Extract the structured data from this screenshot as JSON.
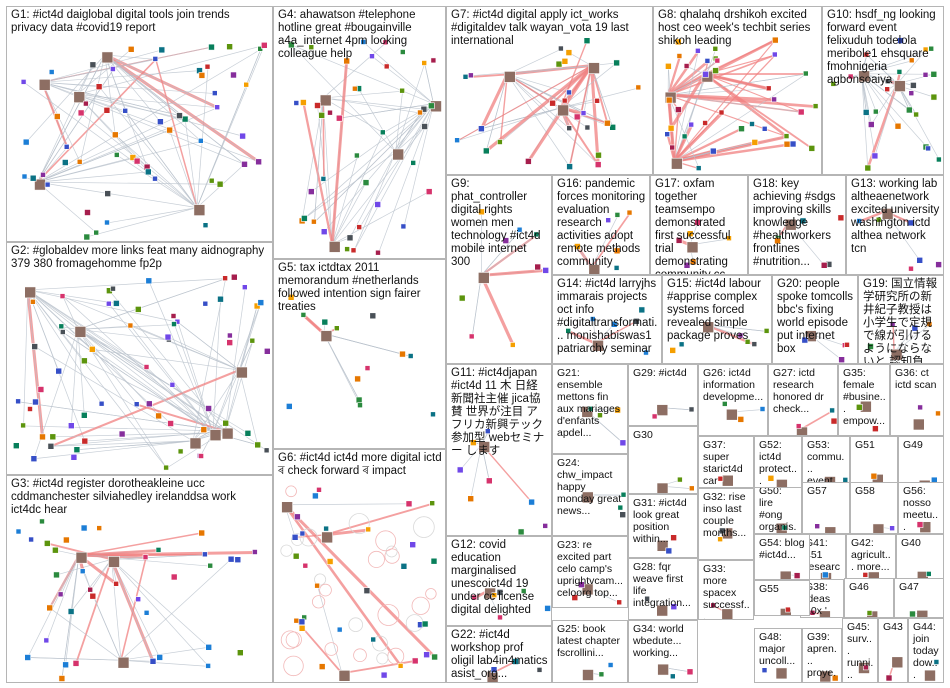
{
  "groups": [
    {
      "id": "G1",
      "label": "G1: #ict4d daiglobal digital tools join trends privacy data #covid19 report"
    },
    {
      "id": "G2",
      "label": "G2: #globaldev more links feat many aidnography 379 380 fromagehomme fp2p"
    },
    {
      "id": "G3",
      "label": "G3: #ict4d register dorotheakleine ucc cddmanchester silviahedley irelanddsa work ict4dc hear"
    },
    {
      "id": "G4",
      "label": "G4: ahawatson #telephone hotline great #bougainville a4a_internet 4pm looking colleague help"
    },
    {
      "id": "G5",
      "label": "G5: tax ictdtax 2011 memorandum #netherlands followed intention sign fairer treaties"
    },
    {
      "id": "G6",
      "label": "G6: #ict4d ict4d more digital ictd ৰ check forward ৰ impact"
    },
    {
      "id": "G7",
      "label": "G7: #ict4d digital apply ict_works #digitaldev talk wayan_vota 19 last international"
    },
    {
      "id": "G8",
      "label": "G8: qhalahq drshikoh excited host ceo week's techbit series shikoh leading"
    },
    {
      "id": "G9",
      "label": "G9: phat_controller digital rights women men technology #ict4d mobile internet 300"
    },
    {
      "id": "G10",
      "label": "G10: hsdf_ng looking forward event felixuduh todelola meribole1 ehsquare fmohnigeria agbonsoaiya"
    },
    {
      "id": "G11",
      "label": "G11: #ict4djapan #ict4d 11 木 日経新聞社主催 jica協賛 世界が注目 アフリカ新興テック 参加型 webセミナー します"
    },
    {
      "id": "G12",
      "label": "G12: covid education marginalised unescoict4d 19 under cc license digital delighted"
    },
    {
      "id": "G13",
      "label": "G13: working lab altheaenetwork excited university washington ictd althea network tcn"
    },
    {
      "id": "G14",
      "label": "G14: #ict4d larryjhs immarais projects oct info #digitaltransformati... monishabiswas1 patriarchy seminar"
    },
    {
      "id": "G15",
      "label": "G15: #ict4d labour #apprise complex systems forced revealed simple package proves"
    },
    {
      "id": "G16",
      "label": "G16: pandemic forces monitoring evaluation research activities adopt remote methods community"
    },
    {
      "id": "G17",
      "label": "G17: oxfam together teamsempo demonstrated first successful trial demonstrating community cc"
    },
    {
      "id": "G18",
      "label": "G18: key achieving #sdgs improving skills knowledge #healthworkers frontlines #nutrition..."
    },
    {
      "id": "G19",
      "label": "G19: 国立情報学研究所の新井紀子教授は 小学生で定規で線が引けるようにならないと 認知負..."
    },
    {
      "id": "G20",
      "label": "G20: people spoke tomcolls bbc's fixing world episode put internet box"
    },
    {
      "id": "G21",
      "label": "G21: ensemble mettons fin aux mariages d'enfants apdel..."
    },
    {
      "id": "G22",
      "label": "G22: #ict4d workshop prof oligil lab4in4matics asist_org..."
    },
    {
      "id": "G23",
      "label": "G23: re excited part celo camp's uprightvcam... celoorg top..."
    },
    {
      "id": "G24",
      "label": "G24: chw_impact happy monday great news..."
    },
    {
      "id": "G25",
      "label": "G25: book latest chapter fscrollini..."
    },
    {
      "id": "G26",
      "label": "G26: ict4d information developme..."
    },
    {
      "id": "G27",
      "label": "G27: ictd research honored dr check..."
    },
    {
      "id": "G28",
      "label": "G28: fqr weave first life integration..."
    },
    {
      "id": "G29",
      "label": "G29: #ict4d"
    },
    {
      "id": "G30",
      "label": "G30"
    },
    {
      "id": "G31",
      "label": "G31: #ict4d look great position within..."
    },
    {
      "id": "G32",
      "label": "G32: rise inso last couple months..."
    },
    {
      "id": "G33",
      "label": "G33: more spacex successf..."
    },
    {
      "id": "G34",
      "label": "G34: world wbedute... working..."
    },
    {
      "id": "G35",
      "label": "G35: female #busine... empow..."
    },
    {
      "id": "G36",
      "label": "G36: ct ictd scan"
    },
    {
      "id": "G37",
      "label": "G37: super starict4d car please..."
    },
    {
      "id": "G38",
      "label": "G38: ideas 10x '"
    },
    {
      "id": "G39",
      "label": "G39: apren... proye..."
    },
    {
      "id": "G40",
      "label": "G40"
    },
    {
      "id": "G41",
      "label": "G41: 451 researc..."
    },
    {
      "id": "G42",
      "label": "G42: agricult... more..."
    },
    {
      "id": "G43",
      "label": "G43"
    },
    {
      "id": "G44",
      "label": "G44: join today dow..."
    },
    {
      "id": "G45",
      "label": "G45: surv... runni... com..."
    },
    {
      "id": "G46",
      "label": "G46"
    },
    {
      "id": "G47",
      "label": "G47"
    },
    {
      "id": "G48",
      "label": "G48: major uncoll..."
    },
    {
      "id": "G49",
      "label": "G49"
    },
    {
      "id": "G50",
      "label": "G50: lire #ong organis..."
    },
    {
      "id": "G51",
      "label": "G51"
    },
    {
      "id": "G52",
      "label": "G52: ict4d protect..."
    },
    {
      "id": "G53",
      "label": "G53: commu... event..."
    },
    {
      "id": "G54",
      "label": "G54: blog #ict4d..."
    },
    {
      "id": "G55",
      "label": "G55"
    },
    {
      "id": "G56",
      "label": "G56: nosso meetu..."
    },
    {
      "id": "G57",
      "label": "G57"
    },
    {
      "id": "G58",
      "label": "G58"
    }
  ]
}
